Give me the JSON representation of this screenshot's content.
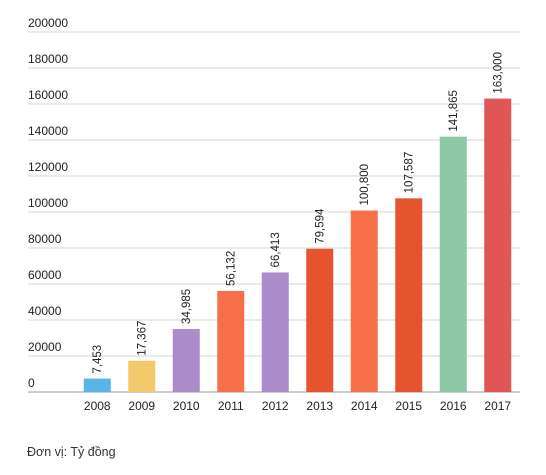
{
  "chart_data": {
    "type": "bar",
    "categories": [
      "2008",
      "2009",
      "2010",
      "2011",
      "2012",
      "2013",
      "2014",
      "2015",
      "2016",
      "2017"
    ],
    "values": [
      7453,
      17367,
      34985,
      56132,
      66413,
      79594,
      100800,
      107587,
      141865,
      163000
    ],
    "data_labels": [
      "7,453",
      "17,367",
      "34,985",
      "56,132",
      "66,413",
      "79,594",
      "100,800",
      "107,587",
      "141,865",
      "163,000"
    ],
    "colors": [
      "#5ab4e5",
      "#f2c96b",
      "#a98cc9",
      "#f77049",
      "#a98cc9",
      "#e5542e",
      "#f77049",
      "#e5542e",
      "#8cc7a6",
      "#e05555"
    ],
    "ylim": [
      0,
      200000
    ],
    "yticks": [
      "0",
      "20000",
      "40000",
      "60000",
      "80000",
      "100000",
      "120000",
      "140000",
      "160000",
      "180000",
      "200000"
    ],
    "grid": true,
    "xlabel": "",
    "ylabel": ""
  },
  "unit_note": "Đơn vị: Tỷ đồng"
}
